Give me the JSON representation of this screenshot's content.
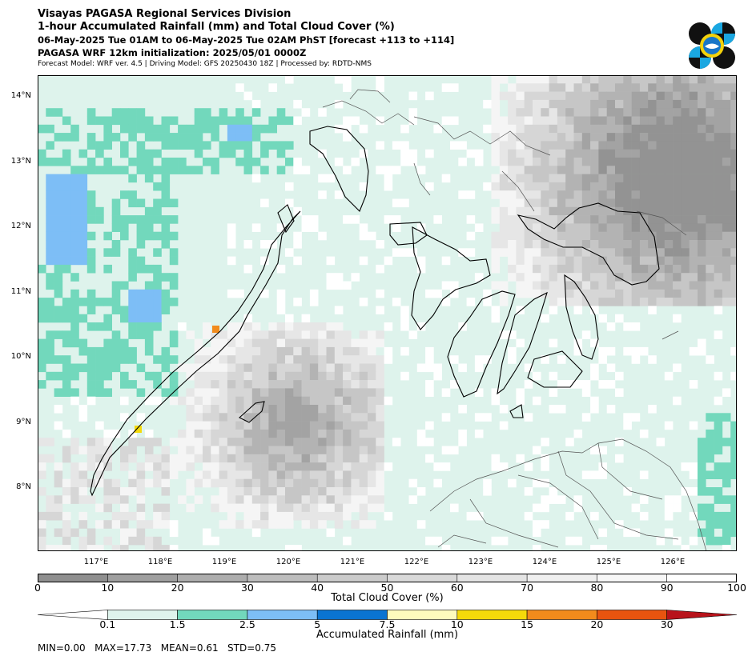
{
  "header": {
    "line1": "Visayas PAGASA Regional Services Division",
    "line2": "1-hour Accumulated Rainfall (mm) and Total Cloud Cover (%)",
    "line3": "06-May-2025 Tue 01AM to 06-May-2025 Tue 02AM PhST [forecast +113 to +114]",
    "line4": "PAGASA WRF 12km initialization: 2025/05/01 0000Z",
    "line5": "Forecast Model: WRF ver. 4.5 | Driving Model: GFS 20250430 18Z | Processed by: RDTD-NMS"
  },
  "map": {
    "lat_labels": [
      "14°N",
      "13°N",
      "12°N",
      "11°N",
      "10°N",
      "9°N",
      "8°N"
    ],
    "lon_labels": [
      "117°E",
      "118°E",
      "119°E",
      "120°E",
      "121°E",
      "122°E",
      "123°E",
      "124°E",
      "125°E",
      "126°E"
    ]
  },
  "cloud_bar": {
    "label": "Total Cloud Cover (%)",
    "ticks": [
      "0",
      "10",
      "20",
      "30",
      "40",
      "50",
      "60",
      "70",
      "80",
      "90",
      "100"
    ],
    "colors": [
      "#8f8f8f",
      "#9f9f9f",
      "#adadad",
      "#bdbdbd",
      "#cbcbcb",
      "#d9d9d9",
      "#e4e4e4",
      "#efefef",
      "#f7f7f7",
      "#ffffff"
    ]
  },
  "rain_bar": {
    "label": "Accumulated Rainfall (mm)",
    "ticks": [
      "0.1",
      "1.5",
      "2.5",
      "5",
      "7.5",
      "10",
      "15",
      "20",
      "30"
    ],
    "colors": [
      "#def3ec",
      "#72d8bc",
      "#7dbef6",
      "#0a74d2",
      "#fdfbbd",
      "#f5da0a",
      "#f28b1c",
      "#e8540f"
    ],
    "low_color": "#ffffff",
    "high_color": "#b8131b"
  },
  "stats": {
    "text": "MIN=0.00   MAX=17.73   MEAN=0.61   STD=0.75"
  }
}
